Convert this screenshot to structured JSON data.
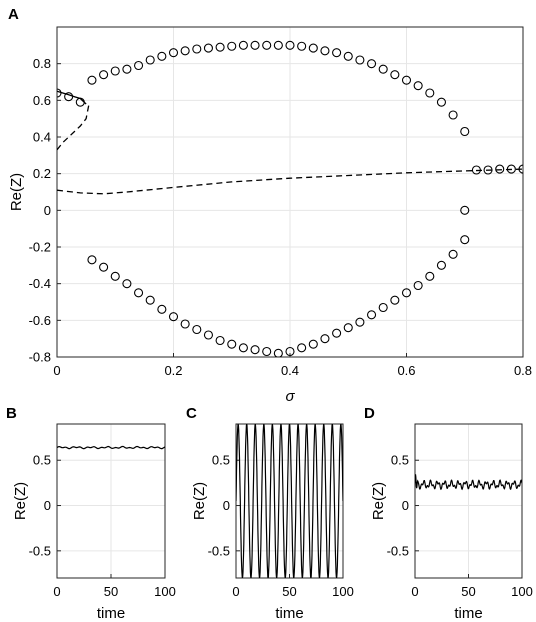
{
  "chart_data": [
    {
      "panel": "A",
      "type": "scatter",
      "xlabel": "σ",
      "ylabel": "Re(Z)",
      "xlim": [
        0,
        0.8
      ],
      "ylim": [
        -0.8,
        1.0
      ],
      "xticks": [
        "0",
        "0.2",
        "0.4",
        "0.6",
        "0.8"
      ],
      "yticks": [
        "-0.8",
        "-0.6",
        "-0.4",
        "-0.2",
        "0",
        "0.2",
        "0.4",
        "0.6",
        "0.8"
      ],
      "grid": true,
      "series": [
        {
          "style": "circles",
          "points": [
            [
              0.0,
              0.64
            ],
            [
              0.02,
              0.62
            ],
            [
              0.04,
              0.59
            ],
            [
              0.06,
              0.71
            ],
            [
              0.08,
              0.74
            ],
            [
              0.1,
              0.76
            ],
            [
              0.12,
              0.77
            ],
            [
              0.14,
              0.79
            ],
            [
              0.16,
              0.82
            ],
            [
              0.18,
              0.84
            ],
            [
              0.2,
              0.86
            ],
            [
              0.22,
              0.87
            ],
            [
              0.24,
              0.88
            ],
            [
              0.26,
              0.885
            ],
            [
              0.28,
              0.89
            ],
            [
              0.3,
              0.895
            ],
            [
              0.32,
              0.9
            ],
            [
              0.34,
              0.9
            ],
            [
              0.36,
              0.9
            ],
            [
              0.38,
              0.9
            ],
            [
              0.4,
              0.9
            ],
            [
              0.42,
              0.895
            ],
            [
              0.44,
              0.885
            ],
            [
              0.46,
              0.87
            ],
            [
              0.48,
              0.86
            ],
            [
              0.5,
              0.84
            ],
            [
              0.52,
              0.82
            ],
            [
              0.54,
              0.8
            ],
            [
              0.56,
              0.77
            ],
            [
              0.58,
              0.74
            ],
            [
              0.6,
              0.71
            ],
            [
              0.62,
              0.68
            ],
            [
              0.64,
              0.64
            ],
            [
              0.66,
              0.59
            ],
            [
              0.68,
              0.52
            ],
            [
              0.7,
              0.43
            ],
            [
              0.06,
              -0.27
            ],
            [
              0.08,
              -0.31
            ],
            [
              0.1,
              -0.36
            ],
            [
              0.12,
              -0.4
            ],
            [
              0.14,
              -0.45
            ],
            [
              0.16,
              -0.49
            ],
            [
              0.18,
              -0.54
            ],
            [
              0.2,
              -0.58
            ],
            [
              0.22,
              -0.62
            ],
            [
              0.24,
              -0.65
            ],
            [
              0.26,
              -0.68
            ],
            [
              0.28,
              -0.71
            ],
            [
              0.3,
              -0.73
            ],
            [
              0.32,
              -0.75
            ],
            [
              0.34,
              -0.76
            ],
            [
              0.36,
              -0.77
            ],
            [
              0.38,
              -0.78
            ],
            [
              0.4,
              -0.77
            ],
            [
              0.42,
              -0.75
            ],
            [
              0.44,
              -0.73
            ],
            [
              0.46,
              -0.7
            ],
            [
              0.48,
              -0.67
            ],
            [
              0.5,
              -0.64
            ],
            [
              0.52,
              -0.61
            ],
            [
              0.54,
              -0.57
            ],
            [
              0.56,
              -0.53
            ],
            [
              0.58,
              -0.49
            ],
            [
              0.6,
              -0.45
            ],
            [
              0.62,
              -0.41
            ],
            [
              0.64,
              -0.36
            ],
            [
              0.66,
              -0.3
            ],
            [
              0.68,
              -0.24
            ],
            [
              0.7,
              -0.16
            ],
            [
              0.7,
              0.0
            ],
            [
              0.72,
              0.22
            ],
            [
              0.74,
              0.22
            ],
            [
              0.76,
              0.225
            ],
            [
              0.78,
              0.225
            ],
            [
              0.8,
              0.225
            ]
          ]
        },
        {
          "style": "solid-line",
          "x": [
            0.0,
            0.01,
            0.02,
            0.03,
            0.04,
            0.05
          ],
          "y": [
            0.65,
            0.64,
            0.63,
            0.62,
            0.61,
            0.58
          ]
        },
        {
          "style": "dashed-line",
          "x": [
            0.0,
            0.01,
            0.02,
            0.03,
            0.04,
            0.05,
            0.055
          ],
          "y": [
            0.33,
            0.37,
            0.4,
            0.43,
            0.46,
            0.5,
            0.58
          ]
        },
        {
          "style": "dashed-line",
          "x": [
            0.0,
            0.04,
            0.08,
            0.12,
            0.2,
            0.3,
            0.4,
            0.5,
            0.6,
            0.7,
            0.8
          ],
          "y": [
            0.11,
            0.095,
            0.09,
            0.1,
            0.125,
            0.155,
            0.175,
            0.19,
            0.205,
            0.215,
            0.225
          ]
        }
      ]
    },
    {
      "panel": "B",
      "type": "line",
      "xlabel": "time",
      "ylabel": "Re(Z)",
      "xlim": [
        0,
        100
      ],
      "ylim": [
        -0.8,
        0.9
      ],
      "xticks": [
        "0",
        "50",
        "100"
      ],
      "yticks": [
        "-0.5",
        "0",
        "0.5"
      ],
      "grid": true,
      "signal": {
        "kind": "flat",
        "mean": 0.64,
        "amplitude": 0.012,
        "period": 9
      }
    },
    {
      "panel": "C",
      "type": "line",
      "xlabel": "time",
      "ylabel": "Re(Z)",
      "xlim": [
        0,
        100
      ],
      "ylim": [
        -0.8,
        0.9
      ],
      "xticks": [
        "0",
        "50",
        "100"
      ],
      "yticks": [
        "-0.5",
        "0",
        "0.5"
      ],
      "grid": true,
      "signal": {
        "kind": "sine",
        "mean": 0.05,
        "amplitude": 0.85,
        "period": 8
      }
    },
    {
      "panel": "D",
      "type": "line",
      "xlabel": "time",
      "ylabel": "Re(Z)",
      "xlim": [
        0,
        100
      ],
      "ylim": [
        -0.8,
        0.9
      ],
      "xticks": [
        "0",
        "50",
        "100"
      ],
      "yticks": [
        "-0.5",
        "0",
        "0.5"
      ],
      "grid": true,
      "signal": {
        "kind": "noisy",
        "mean": 0.23,
        "amplitude": 0.05,
        "period": 6.5
      }
    }
  ]
}
